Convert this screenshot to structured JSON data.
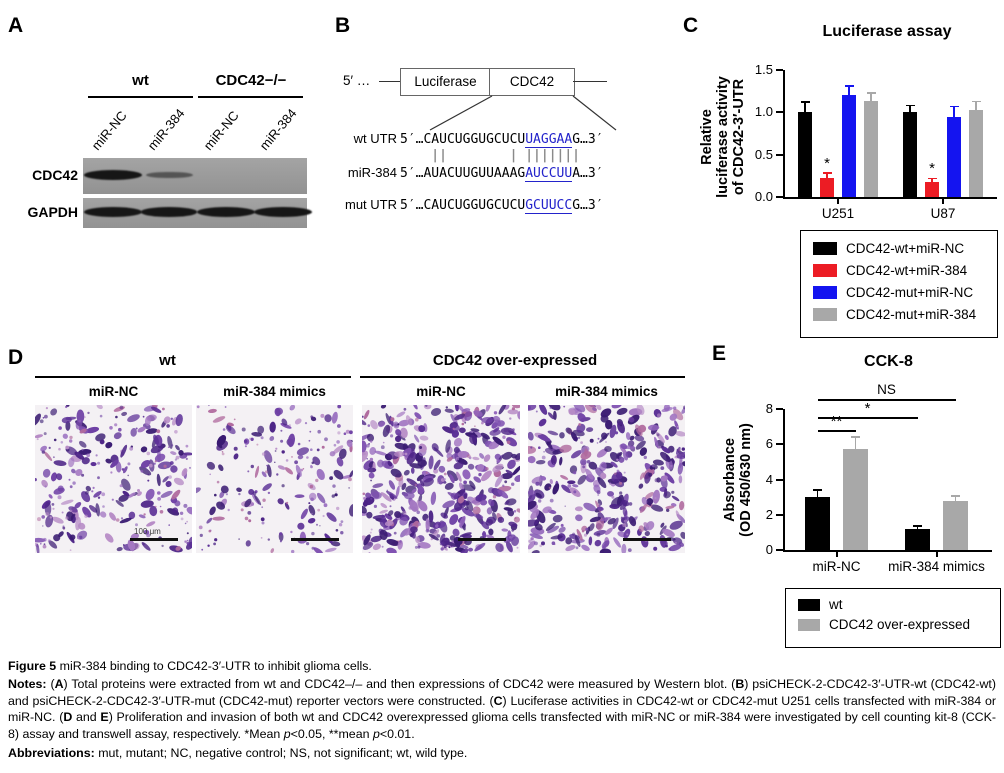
{
  "panel_a": {
    "label": "A",
    "groups": [
      "wt",
      "CDC42−/−"
    ],
    "lanes": [
      "miR-NC",
      "miR-384",
      "miR-NC",
      "miR-384"
    ],
    "rows": [
      {
        "label": "CDC42",
        "bands": [
          1,
          0.45,
          0,
          0
        ]
      },
      {
        "label": "GAPDH",
        "bands": [
          1,
          0.92,
          1,
          1
        ]
      }
    ]
  },
  "panel_b": {
    "label": "B",
    "five_prime_label": "5′ …",
    "boxes": [
      "Luciferase",
      "CDC42"
    ],
    "rows": [
      {
        "name": "wt UTR",
        "prefix": "5′…",
        "pre": "CAUCUGGUGCUCU",
        "highlight": "UAGGAA",
        "post": "G",
        "suffix": "…3′"
      },
      {
        "name": "miR-384",
        "prefix": "5′…",
        "pre": "AUACUUGUUAAAG",
        "highlight": "AUCCUU",
        "post": "A",
        "suffix": "…3′"
      },
      {
        "name": "mut UTR",
        "prefix": "5′…",
        "pre": "CAUCUGGUGCUCU",
        "highlight": "GCUUCC",
        "post": "G",
        "suffix": "…3′"
      }
    ],
    "match_pattern": "    ||        | |||||||",
    "highlight_color": "#2323cb"
  },
  "panel_c": {
    "label": "C",
    "y_label_lines": [
      "Relative",
      "luciferase activity",
      "of CDC42-3′-UTR"
    ],
    "y_tick_labels": [
      "0.0",
      "0.5",
      "1.0",
      "1.5"
    ]
  },
  "panel_d": {
    "label": "D",
    "group_headers": [
      "wt",
      "CDC42 over-expressed"
    ],
    "sub_headers": [
      "miR-NC",
      "miR-384 mimics",
      "miR-NC",
      "miR-384 mimics"
    ],
    "scale_bar_label": "100 μm",
    "images": [
      {
        "group": "wt",
        "treatment": "miR-NC",
        "cell_density": "medium-high",
        "cells": 150,
        "dots": 130
      },
      {
        "group": "wt",
        "treatment": "miR-384 mimics",
        "cell_density": "low",
        "cells": 85,
        "dots": 120
      },
      {
        "group": "CDC42 over-expressed",
        "treatment": "miR-NC",
        "cell_density": "very-high",
        "cells": 340,
        "dots": 90
      },
      {
        "group": "CDC42 over-expressed",
        "treatment": "miR-384 mimics",
        "cell_density": "high",
        "cells": 270,
        "dots": 90
      }
    ]
  },
  "panel_e": {
    "label": "E",
    "y_label_lines": [
      "Absorbance",
      "(OD 450/630 nm)"
    ],
    "y_tick_labels": [
      "0",
      "2",
      "4",
      "6",
      "8"
    ]
  },
  "chart_data": [
    {
      "id": "luciferase-assay",
      "type": "bar",
      "title": "Luciferase assay",
      "ylabel": "Relative luciferase activity of CDC42-3′-UTR",
      "ylim": [
        0,
        1.5
      ],
      "yticks": [
        0,
        0.5,
        1.0,
        1.5
      ],
      "categories": [
        "U251",
        "U87"
      ],
      "series": [
        {
          "name": "CDC42-wt+miR-NC",
          "color": "#000000",
          "values": [
            1.0,
            1.0
          ],
          "errors": [
            0.12,
            0.08
          ],
          "sig": [
            "",
            ""
          ]
        },
        {
          "name": "CDC42-wt+miR-384",
          "color": "#ec1c24",
          "values": [
            0.23,
            0.18
          ],
          "errors": [
            0.05,
            0.04
          ],
          "sig": [
            "*",
            "*"
          ]
        },
        {
          "name": "CDC42-mut+miR-NC",
          "color": "#1414f0",
          "values": [
            1.2,
            0.94
          ],
          "errors": [
            0.11,
            0.13
          ],
          "sig": [
            "",
            ""
          ]
        },
        {
          "name": "CDC42-mut+miR-384",
          "color": "#a8a8a8",
          "values": [
            1.13,
            1.03
          ],
          "errors": [
            0.1,
            0.1
          ],
          "sig": [
            "",
            ""
          ]
        }
      ],
      "legend_position": "below-right",
      "grid": false
    },
    {
      "id": "cck8",
      "type": "bar",
      "title": "CCK-8",
      "ylabel": "Absorbance (OD 450/630 nm)",
      "ylim": [
        0,
        8
      ],
      "yticks": [
        0,
        2,
        4,
        6,
        8
      ],
      "categories": [
        "miR-NC",
        "miR-384 mimics"
      ],
      "series": [
        {
          "name": "wt",
          "color": "#000000",
          "values": [
            3.0,
            1.2
          ],
          "errors": [
            0.4,
            0.15
          ],
          "sig": [
            "",
            ""
          ]
        },
        {
          "name": "CDC42 over-expressed",
          "color": "#a8a8a8",
          "values": [
            5.75,
            2.8
          ],
          "errors": [
            0.65,
            0.25
          ],
          "sig": [
            "",
            ""
          ]
        }
      ],
      "comparisons": [
        {
          "label": "**",
          "from_cat": 0,
          "from_series": 0,
          "to_cat": 0,
          "to_series": 1
        },
        {
          "label": "*",
          "from_cat": 0,
          "from_series": 0,
          "to_cat": 1,
          "to_series": 0
        },
        {
          "label": "NS",
          "from_cat": 0,
          "from_series": 0,
          "to_cat": 1,
          "to_series": 1
        }
      ],
      "legend_position": "below-right",
      "grid": false
    }
  ],
  "caption": {
    "title_segments": [
      {
        "t": "Figure 5 ",
        "b": true
      },
      {
        "t": "miR-384 binding to CDC42-3′-UTR to inhibit glioma cells."
      }
    ],
    "notes_segments": [
      {
        "t": "Notes: ",
        "b": true
      },
      {
        "t": "("
      },
      {
        "t": "A",
        "b": true
      },
      {
        "t": ") Total proteins were extracted from wt and CDC42–/– and then expressions of CDC42 were measured by Western blot. ("
      },
      {
        "t": "B",
        "b": true
      },
      {
        "t": ") psiCHECK-2-CDC42-3′-UTR-wt (CDC42-wt) and psiCHECK-2-CDC42-3′-UTR-mut (CDC42-mut) reporter vectors were constructed. ("
      },
      {
        "t": "C",
        "b": true
      },
      {
        "t": ") Luciferase activities in CDC42-wt or CDC42-mut U251 cells transfected with miR-384 or miR-NC. ("
      },
      {
        "t": "D",
        "b": true
      },
      {
        "t": " and "
      },
      {
        "t": "E",
        "b": true
      },
      {
        "t": ") Proliferation and invasion of both wt and CDC42 overexpressed glioma cells transfected with miR-NC or miR-384 were investigated by cell counting kit-8 (CCK-8) assay and transwell assay, respectively. *Mean "
      },
      {
        "t": "p",
        "i": true
      },
      {
        "t": "<0.05, **mean "
      },
      {
        "t": "p",
        "i": true
      },
      {
        "t": "<0.01."
      }
    ],
    "abbrev_segments": [
      {
        "t": "Abbreviations: ",
        "b": true
      },
      {
        "t": "mut, mutant; NC, negative control; NS, not significant; wt, wild type."
      }
    ]
  }
}
